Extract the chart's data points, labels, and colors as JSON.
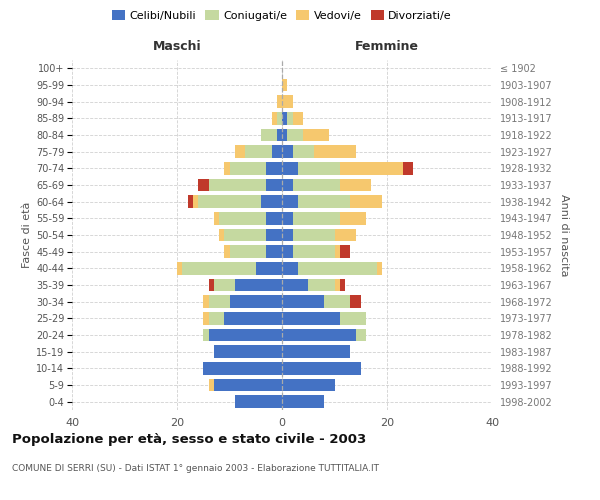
{
  "age_groups": [
    "0-4",
    "5-9",
    "10-14",
    "15-19",
    "20-24",
    "25-29",
    "30-34",
    "35-39",
    "40-44",
    "45-49",
    "50-54",
    "55-59",
    "60-64",
    "65-69",
    "70-74",
    "75-79",
    "80-84",
    "85-89",
    "90-94",
    "95-99",
    "100+"
  ],
  "birth_years": [
    "1998-2002",
    "1993-1997",
    "1988-1992",
    "1983-1987",
    "1978-1982",
    "1973-1977",
    "1968-1972",
    "1963-1967",
    "1958-1962",
    "1953-1957",
    "1948-1952",
    "1943-1947",
    "1938-1942",
    "1933-1937",
    "1928-1932",
    "1923-1927",
    "1918-1922",
    "1913-1917",
    "1908-1912",
    "1903-1907",
    "≤ 1902"
  ],
  "maschi": {
    "celibi": [
      9,
      13,
      15,
      13,
      14,
      11,
      10,
      9,
      5,
      3,
      3,
      3,
      4,
      3,
      3,
      2,
      1,
      0,
      0,
      0,
      0
    ],
    "coniugati": [
      0,
      0,
      0,
      0,
      1,
      3,
      4,
      4,
      14,
      7,
      8,
      9,
      12,
      11,
      7,
      5,
      3,
      1,
      0,
      0,
      0
    ],
    "vedovi": [
      0,
      1,
      0,
      0,
      0,
      1,
      1,
      0,
      1,
      1,
      1,
      1,
      1,
      0,
      1,
      2,
      0,
      1,
      1,
      0,
      0
    ],
    "divorziati": [
      0,
      0,
      0,
      0,
      0,
      0,
      0,
      1,
      0,
      0,
      0,
      0,
      1,
      2,
      0,
      0,
      0,
      0,
      0,
      0,
      0
    ]
  },
  "femmine": {
    "nubili": [
      8,
      10,
      15,
      13,
      14,
      11,
      8,
      5,
      3,
      2,
      2,
      2,
      3,
      2,
      3,
      2,
      1,
      1,
      0,
      0,
      0
    ],
    "coniugate": [
      0,
      0,
      0,
      0,
      2,
      5,
      5,
      5,
      15,
      8,
      8,
      9,
      10,
      9,
      8,
      4,
      3,
      1,
      0,
      0,
      0
    ],
    "vedove": [
      0,
      0,
      0,
      0,
      0,
      0,
      0,
      1,
      1,
      1,
      4,
      5,
      6,
      6,
      12,
      8,
      5,
      2,
      2,
      1,
      0
    ],
    "divorziate": [
      0,
      0,
      0,
      0,
      0,
      0,
      2,
      1,
      0,
      2,
      0,
      0,
      0,
      0,
      2,
      0,
      0,
      0,
      0,
      0,
      0
    ]
  },
  "colors": {
    "celibi_nubili": "#4472c4",
    "coniugati": "#c5d9a0",
    "vedovi": "#f6c86e",
    "divorziati": "#c0392b"
  },
  "xlim": 40,
  "title": "Popolazione per età, sesso e stato civile - 2003",
  "subtitle": "COMUNE DI SERRI (SU) - Dati ISTAT 1° gennaio 2003 - Elaborazione TUTTITALIA.IT",
  "ylabel_left": "Fasce di età",
  "ylabel_right": "Anni di nascita",
  "xlabel_left": "Maschi",
  "xlabel_right": "Femmine",
  "background_color": "#ffffff",
  "grid_color": "#cccccc"
}
